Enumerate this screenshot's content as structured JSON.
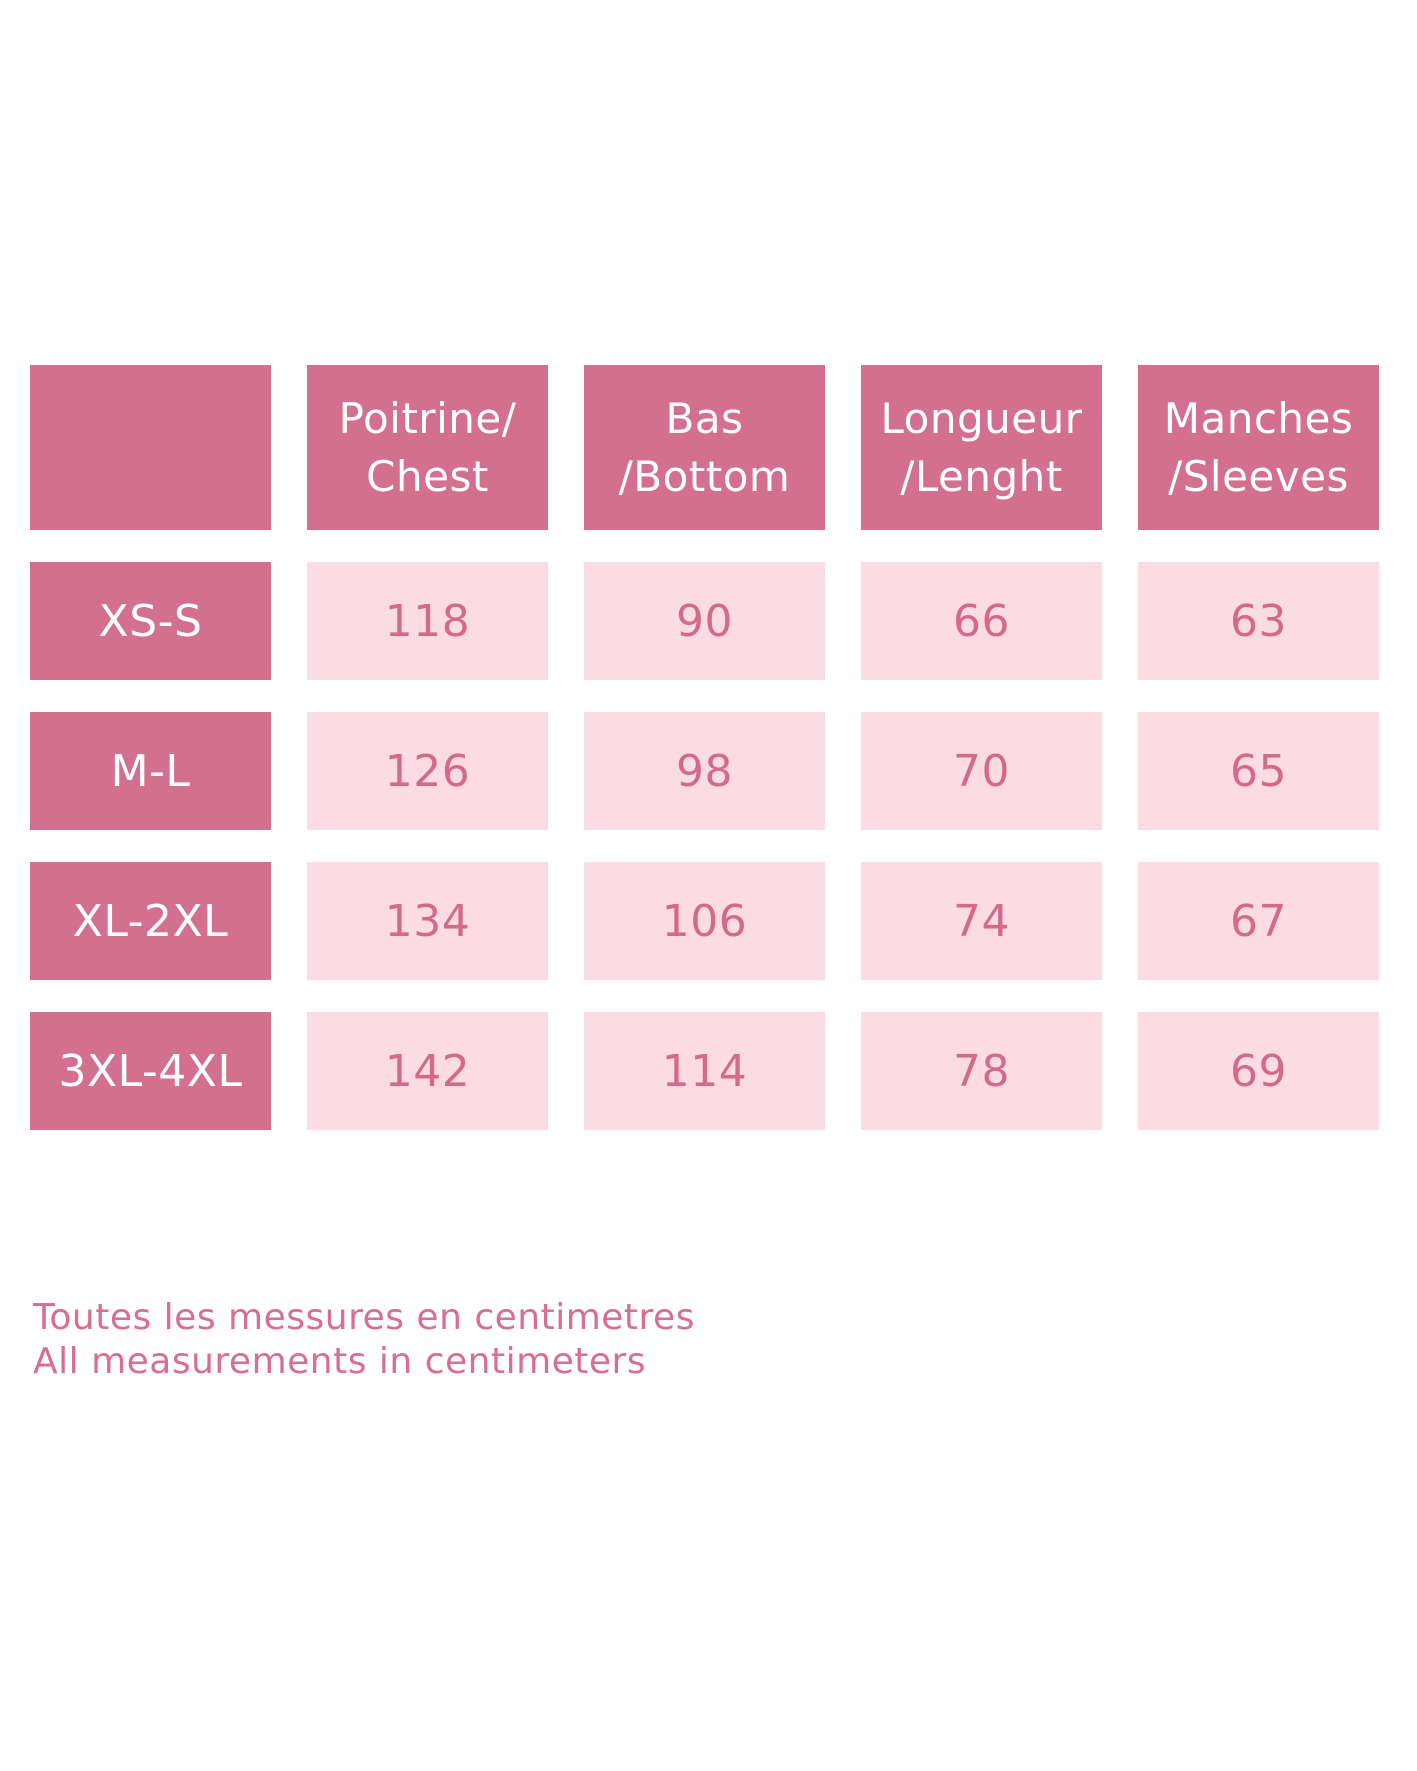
{
  "colors": {
    "page_bg": "#ffffff",
    "header_bg": "#d4708f",
    "header_text": "#ffffff",
    "cell_bg": "#fbdce4",
    "value_text": "#d4698c",
    "note_text": "#d96d92"
  },
  "chart_data": {
    "type": "table",
    "columns": [
      {
        "line1": "",
        "line2": ""
      },
      {
        "line1": "Poitrine/",
        "line2": "Chest"
      },
      {
        "line1": "Bas",
        "line2": "/Bottom"
      },
      {
        "line1": "Longueur",
        "line2": "/Lenght"
      },
      {
        "line1": "Manches",
        "line2": "/Sleeves"
      }
    ],
    "rows": [
      {
        "size": "XS-S",
        "values": [
          118,
          90,
          66,
          63
        ]
      },
      {
        "size": "M-L",
        "values": [
          126,
          98,
          70,
          65
        ]
      },
      {
        "size": "XL-2XL",
        "values": [
          134,
          106,
          74,
          67
        ]
      },
      {
        "size": "3XL-4XL",
        "values": [
          142,
          114,
          78,
          69
        ]
      }
    ],
    "notes": [
      "Toutes les messures en centimetres",
      "All measurements in centimeters"
    ]
  }
}
